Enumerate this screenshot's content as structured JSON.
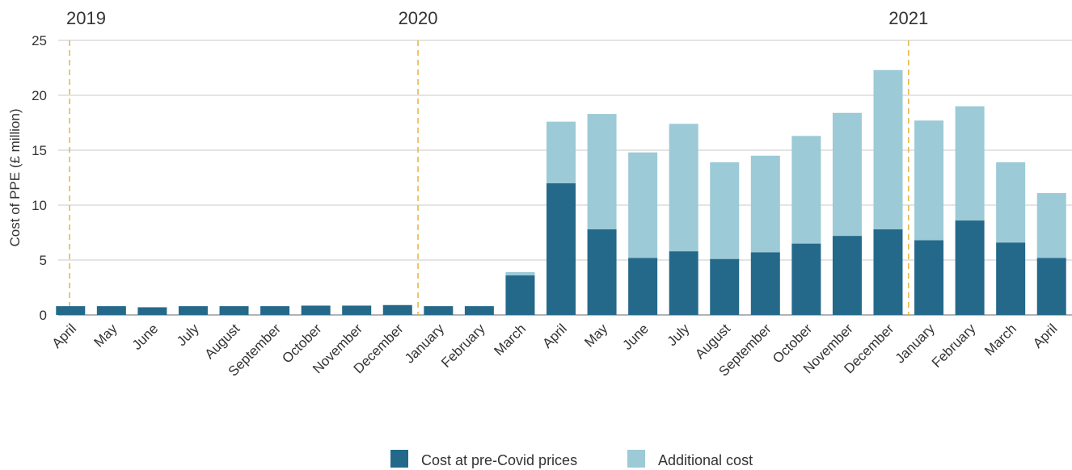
{
  "chart_data": {
    "type": "bar",
    "stacked": true,
    "ylabel": "Cost of PPE (£ million)",
    "ylim": [
      0,
      25
    ],
    "yticks": [
      0,
      5,
      10,
      15,
      20,
      25
    ],
    "grid": true,
    "legend_position": "bottom-center",
    "year_markers": [
      {
        "label": "2019",
        "category_index": 0
      },
      {
        "label": "2020",
        "category_index": 9
      },
      {
        "label": "2021",
        "category_index": 21
      }
    ],
    "categories": [
      "April",
      "May",
      "June",
      "July",
      "August",
      "September",
      "October",
      "November",
      "December",
      "January",
      "February",
      "March",
      "April",
      "May",
      "June",
      "July",
      "August",
      "September",
      "October",
      "November",
      "December",
      "January",
      "February",
      "March",
      "April"
    ],
    "series": [
      {
        "name": "Cost at pre-Covid prices",
        "color": "#24698a",
        "values": [
          0.8,
          0.8,
          0.7,
          0.8,
          0.8,
          0.8,
          0.85,
          0.85,
          0.9,
          0.8,
          0.8,
          3.6,
          12.0,
          7.8,
          5.2,
          5.8,
          5.1,
          5.7,
          6.5,
          7.2,
          7.8,
          6.8,
          8.6,
          6.6,
          5.2
        ]
      },
      {
        "name": "Additional cost",
        "color": "#9ccad6",
        "values": [
          0,
          0,
          0,
          0,
          0,
          0,
          0,
          0,
          0,
          0,
          0,
          0.3,
          5.6,
          10.5,
          9.6,
          11.6,
          8.8,
          8.8,
          9.8,
          11.2,
          14.5,
          10.9,
          10.4,
          7.3,
          5.9
        ]
      }
    ]
  }
}
